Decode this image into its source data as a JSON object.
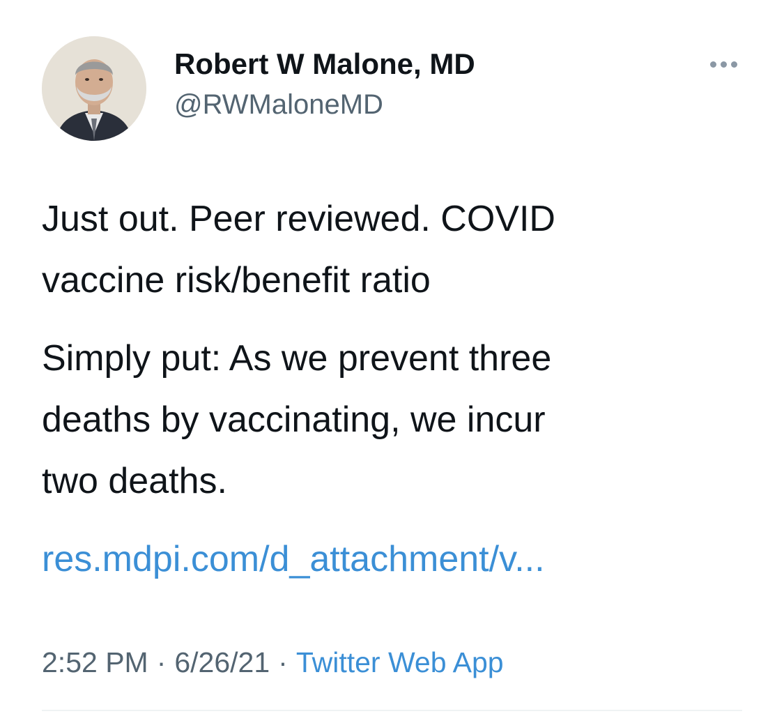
{
  "author": {
    "display_name": "Robert W Malone, MD",
    "handle": "@RWMaloneMD"
  },
  "more_icon": "more-horizontal-icon",
  "tweet": {
    "paragraphs": [
      [
        "Just out.  Peer reviewed.  COVID",
        "vaccine risk/benefit ratio"
      ],
      [
        "Simply put: As we prevent three",
        "deaths by vaccinating, we incur",
        "two deaths."
      ]
    ],
    "link": "res.mdpi.com/d_attachment/v..."
  },
  "meta": {
    "time": "2:52 PM",
    "date": "6/26/21",
    "separator": "·",
    "source": "Twitter Web App"
  },
  "colors": {
    "text": "#0f1419",
    "secondary": "#536471",
    "link": "#3b8fd6"
  }
}
